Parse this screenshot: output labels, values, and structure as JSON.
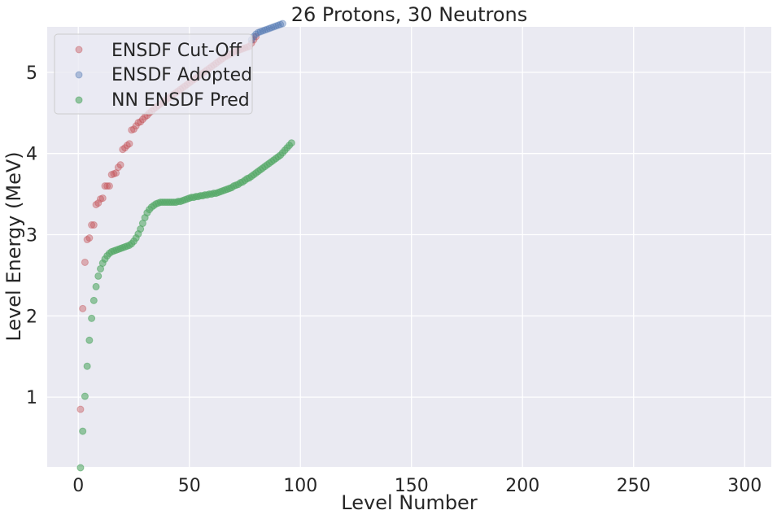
{
  "chart_data": {
    "type": "scatter",
    "title": "26 Protons, 30 Neutrons",
    "xlabel": "Level Number",
    "ylabel": "Level Energy (MeV)",
    "xlim": [
      -14,
      312
    ],
    "ylim": [
      0.14,
      5.56
    ],
    "xticks": [
      0,
      50,
      100,
      150,
      200,
      250,
      300
    ],
    "yticks": [
      1,
      2,
      3,
      4,
      5
    ],
    "grid": true,
    "legend_position": "top-left",
    "series": [
      {
        "name": "ENSDF Cut-Off",
        "color": "#c44e52",
        "x": [
          1,
          2,
          3,
          4,
          5,
          6,
          7,
          8,
          9,
          10,
          11,
          12,
          13,
          14,
          15,
          16,
          17,
          18,
          19,
          20,
          21,
          22,
          23,
          24,
          25,
          26,
          27,
          28,
          29,
          30,
          31,
          32,
          33,
          34,
          35,
          36,
          37,
          38,
          39,
          40,
          41,
          42,
          43,
          44,
          45,
          46,
          47,
          48,
          49,
          50,
          51,
          52,
          53,
          54,
          55,
          56,
          57,
          58,
          59,
          60,
          61,
          62,
          63,
          64,
          65,
          66,
          67,
          68,
          69,
          70,
          71,
          72,
          73,
          74,
          75,
          76,
          77,
          78,
          79,
          80
        ],
        "y": [
          0.85,
          2.09,
          2.66,
          2.94,
          2.96,
          3.12,
          3.12,
          3.37,
          3.39,
          3.44,
          3.45,
          3.6,
          3.6,
          3.6,
          3.74,
          3.75,
          3.76,
          3.83,
          3.86,
          4.05,
          4.07,
          4.1,
          4.12,
          4.29,
          4.3,
          4.34,
          4.38,
          4.39,
          4.42,
          4.45,
          4.47,
          4.5,
          4.52,
          4.55,
          4.57,
          4.59,
          4.61,
          4.63,
          4.65,
          4.67,
          4.69,
          4.71,
          4.73,
          4.75,
          4.77,
          4.79,
          4.81,
          4.83,
          4.85,
          4.87,
          4.89,
          4.91,
          4.93,
          4.95,
          4.97,
          4.99,
          5.01,
          5.03,
          5.05,
          5.07,
          5.09,
          5.11,
          5.13,
          5.15,
          5.17,
          5.19,
          5.2,
          5.22,
          5.23,
          5.25,
          5.26,
          5.27,
          5.28,
          5.29,
          5.3,
          5.31,
          5.32,
          5.36,
          5.4,
          5.44
        ]
      },
      {
        "name": "ENSDF Adopted",
        "color": "#4c72b0",
        "x": [
          78,
          79,
          80,
          81,
          82,
          83,
          84,
          85,
          86,
          87,
          88,
          89,
          90,
          91,
          92,
          93
        ],
        "y": [
          5.4,
          5.44,
          5.47,
          5.49,
          5.5,
          5.51,
          5.52,
          5.53,
          5.54,
          5.55,
          5.56,
          5.57,
          5.58,
          5.59,
          5.6,
          5.61
        ]
      },
      {
        "name": "NN ENSDF Pred",
        "color": "#55a868",
        "x": [
          1,
          2,
          3,
          4,
          5,
          6,
          7,
          8,
          9,
          10,
          11,
          12,
          13,
          14,
          15,
          16,
          17,
          18,
          19,
          20,
          21,
          22,
          23,
          24,
          25,
          26,
          27,
          28,
          29,
          30,
          31,
          32,
          33,
          34,
          35,
          36,
          37,
          38,
          39,
          40,
          41,
          42,
          43,
          44,
          45,
          46,
          47,
          48,
          49,
          50,
          51,
          52,
          53,
          54,
          55,
          56,
          57,
          58,
          59,
          60,
          61,
          62,
          63,
          64,
          65,
          66,
          67,
          68,
          69,
          70,
          71,
          72,
          73,
          74,
          75,
          76,
          77,
          78,
          79,
          80,
          81,
          82,
          83,
          84,
          85,
          86,
          87,
          88,
          89,
          90,
          91,
          92,
          93,
          94,
          95,
          96
        ],
        "y": [
          0.13,
          0.58,
          1.01,
          1.38,
          1.7,
          1.97,
          2.19,
          2.36,
          2.49,
          2.58,
          2.65,
          2.7,
          2.74,
          2.77,
          2.79,
          2.8,
          2.81,
          2.82,
          2.83,
          2.84,
          2.85,
          2.86,
          2.87,
          2.89,
          2.92,
          2.96,
          3.01,
          3.07,
          3.14,
          3.21,
          3.27,
          3.31,
          3.34,
          3.36,
          3.38,
          3.39,
          3.4,
          3.4,
          3.4,
          3.4,
          3.4,
          3.4,
          3.4,
          3.4,
          3.41,
          3.41,
          3.42,
          3.43,
          3.44,
          3.45,
          3.46,
          3.46,
          3.47,
          3.47,
          3.48,
          3.48,
          3.49,
          3.49,
          3.5,
          3.5,
          3.51,
          3.51,
          3.52,
          3.53,
          3.54,
          3.55,
          3.56,
          3.57,
          3.58,
          3.6,
          3.61,
          3.62,
          3.64,
          3.65,
          3.67,
          3.69,
          3.7,
          3.72,
          3.74,
          3.76,
          3.78,
          3.8,
          3.82,
          3.84,
          3.86,
          3.88,
          3.9,
          3.92,
          3.94,
          3.96,
          3.98,
          4.01,
          4.04,
          4.07,
          4.1,
          4.13
        ]
      }
    ]
  }
}
